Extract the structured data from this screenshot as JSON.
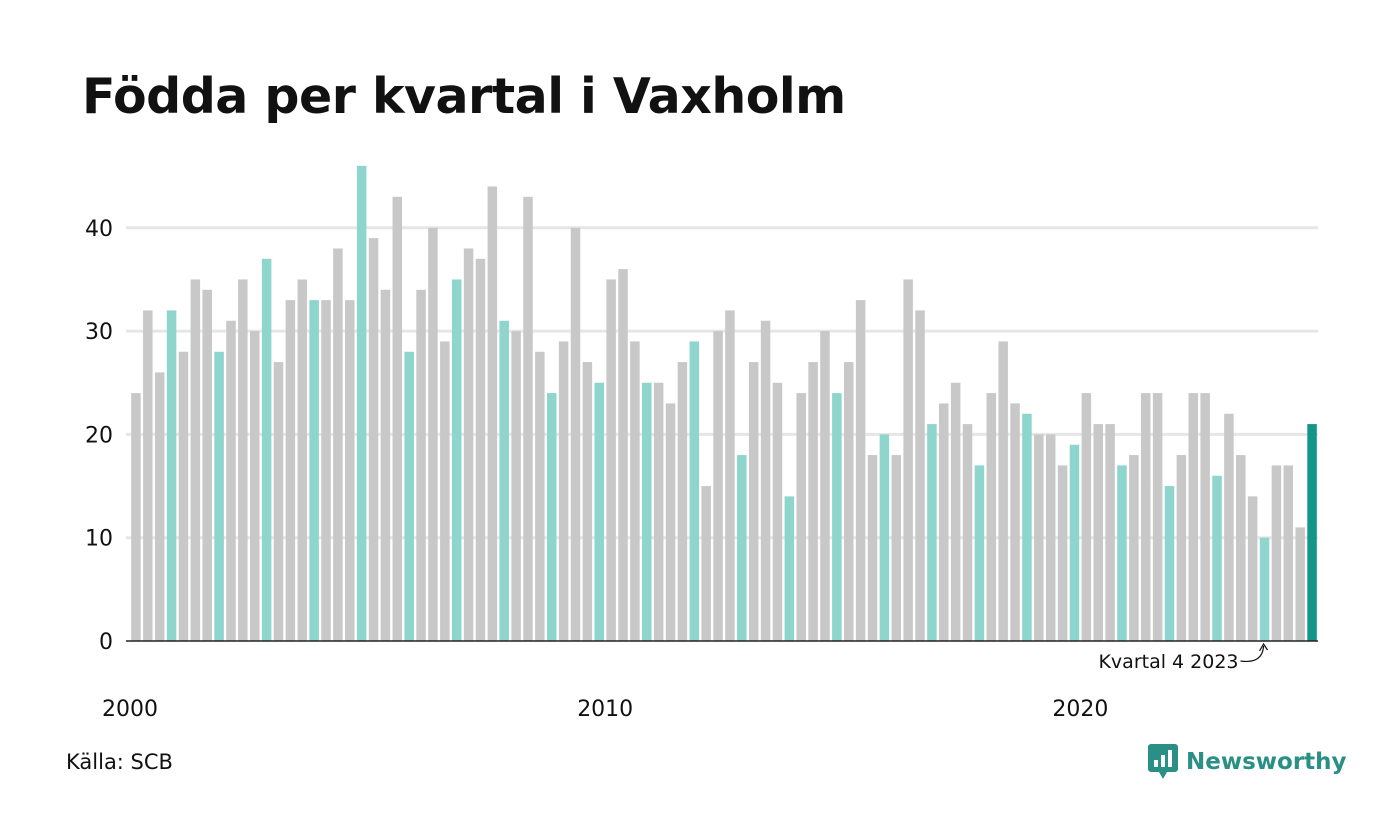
{
  "title": "Födda per kvartal i Vaxholm",
  "source": "Källa: SCB",
  "brand": "Newsworthy",
  "colors": {
    "bar": "#c8c8c8",
    "highlight_quarter": "#8dd5cd",
    "latest": "#12968a",
    "gridline": "#e6e6e6",
    "axis": "#222222",
    "brand": "#2a8f85"
  },
  "chart_data": {
    "type": "bar",
    "title": "Födda per kvartal i Vaxholm",
    "xlabel": "",
    "ylabel": "",
    "ylim": [
      0,
      46
    ],
    "yticks": [
      0,
      10,
      20,
      30,
      40
    ],
    "xtick_labels": [
      "2000",
      "2010",
      "2020"
    ],
    "grid": true,
    "start_year": 2000,
    "highlight_quarter": 4,
    "annotation": {
      "text": "Kvartal 4 2023",
      "year": 2023,
      "quarter": 4
    },
    "values": [
      24,
      32,
      26,
      32,
      28,
      35,
      34,
      28,
      31,
      35,
      30,
      37,
      27,
      33,
      35,
      33,
      33,
      38,
      33,
      46,
      39,
      34,
      43,
      28,
      34,
      40,
      29,
      35,
      38,
      37,
      44,
      31,
      30,
      43,
      28,
      24,
      29,
      40,
      27,
      25,
      35,
      36,
      29,
      25,
      25,
      23,
      27,
      29,
      15,
      30,
      32,
      18,
      27,
      31,
      25,
      14,
      24,
      27,
      30,
      24,
      27,
      33,
      18,
      20,
      18,
      35,
      32,
      21,
      23,
      25,
      21,
      17,
      24,
      29,
      23,
      22,
      20,
      20,
      17,
      19,
      24,
      21,
      21,
      17,
      18,
      24,
      24,
      15,
      18,
      24,
      24,
      16,
      22,
      18,
      14,
      10,
      17,
      17,
      11,
      21
    ]
  }
}
